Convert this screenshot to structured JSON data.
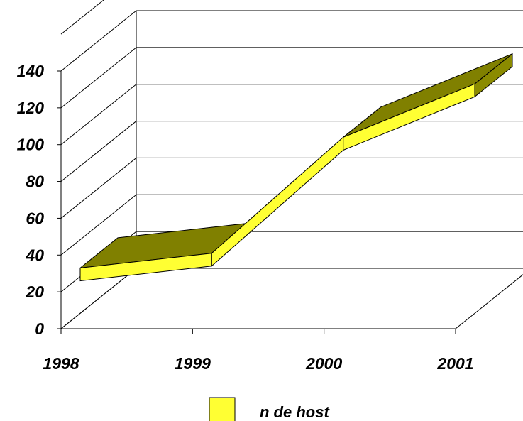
{
  "chart_data": {
    "type": "line",
    "style": "3d-ribbon",
    "title": "",
    "xlabel": "",
    "ylabel": "",
    "categories": [
      "1998",
      "1999",
      "2000",
      "2001"
    ],
    "y_ticks": [
      "0",
      "20",
      "40",
      "60",
      "80",
      "100",
      "120",
      "140"
    ],
    "ylim": [
      0,
      140
    ],
    "grid": true,
    "legend_position": "bottom",
    "series": [
      {
        "name": "n de host",
        "values": [
          33,
          41,
          104,
          133
        ]
      }
    ],
    "colors": {
      "front": "#ffff33",
      "top": "#808000",
      "side": "#8b8b00",
      "grid": "#000000"
    }
  }
}
